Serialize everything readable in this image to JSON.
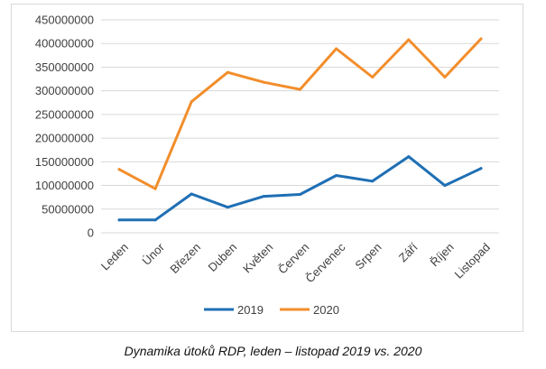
{
  "caption": "Dynamika útoků RDP, leden – listopad 2019 vs. 2020",
  "chart_data": {
    "type": "line",
    "title": "",
    "xlabel": "",
    "ylabel": "",
    "categories": [
      "Leden",
      "Únor",
      "Březen",
      "Duben",
      "Květen",
      "Červen",
      "Červenec",
      "Srpen",
      "Září",
      "Říjen",
      "Listopad"
    ],
    "ylim": [
      0,
      450000000
    ],
    "yticks": [
      0,
      50000000,
      100000000,
      150000000,
      200000000,
      250000000,
      300000000,
      350000000,
      400000000,
      450000000
    ],
    "grid": true,
    "legend_position": "bottom",
    "series": [
      {
        "name": "2019",
        "color": "#1f6fb4",
        "values": [
          27000000,
          27000000,
          82000000,
          54000000,
          77000000,
          81000000,
          121000000,
          109000000,
          161000000,
          100000000,
          136000000
        ]
      },
      {
        "name": "2020",
        "color": "#f28e2b",
        "values": [
          134000000,
          93000000,
          277000000,
          339000000,
          318000000,
          303000000,
          389000000,
          329000000,
          408000000,
          329000000,
          410000000
        ]
      }
    ]
  }
}
